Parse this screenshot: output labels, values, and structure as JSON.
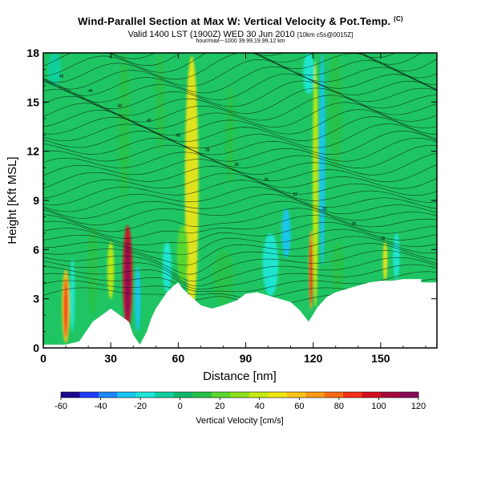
{
  "header": {
    "title": "Wind-Parallel Section at Max W: Vertical Velocity & Pot.Temp.",
    "title_mark": "(C)",
    "valid_line": "Valid 1400 LST (1900Z) WED 30 Jun 2010",
    "run_info": "[10km c5s@0015Z]",
    "sub_line": "hour/max~-1000 39.99,19.99,12 km"
  },
  "chart_data": {
    "type": "heatmap",
    "title": "Wind-Parallel Section at Max W: Vertical Velocity & Pot.Temp.",
    "xlabel": "Distance [nm]",
    "ylabel": "Height [Kft MSL]",
    "xlim": [
      0,
      175
    ],
    "ylim": [
      0,
      18
    ],
    "x_ticks": [
      "0",
      "30",
      "60",
      "90",
      "120",
      "150"
    ],
    "y_ticks": [
      "0",
      "3",
      "6",
      "9",
      "12",
      "15",
      "18"
    ],
    "x_tick_values": [
      0,
      30,
      60,
      90,
      120,
      150
    ],
    "y_tick_values": [
      0,
      3,
      6,
      9,
      12,
      15,
      18
    ],
    "terrain": {
      "unit_x": "nm",
      "unit_y": "Kft MSL",
      "points": [
        [
          0,
          0.2
        ],
        [
          10,
          0.2
        ],
        [
          16,
          0.4
        ],
        [
          22,
          1.6
        ],
        [
          27,
          2.1
        ],
        [
          30,
          2.4
        ],
        [
          34,
          2.0
        ],
        [
          38,
          1.6
        ],
        [
          40,
          0.8
        ],
        [
          43,
          0.2
        ],
        [
          46,
          1.0
        ],
        [
          48,
          1.8
        ],
        [
          50,
          2.4
        ],
        [
          52,
          2.8
        ],
        [
          55,
          3.4
        ],
        [
          58,
          3.8
        ],
        [
          60,
          4.0
        ],
        [
          62,
          3.6
        ],
        [
          66,
          3.1
        ],
        [
          70,
          2.6
        ],
        [
          75,
          2.4
        ],
        [
          80,
          2.6
        ],
        [
          86,
          2.9
        ],
        [
          90,
          3.3
        ],
        [
          95,
          3.4
        ],
        [
          100,
          3.2
        ],
        [
          105,
          3.0
        ],
        [
          110,
          2.8
        ],
        [
          114,
          2.3
        ],
        [
          118,
          1.6
        ],
        [
          122,
          2.5
        ],
        [
          126,
          3.1
        ],
        [
          130,
          3.4
        ],
        [
          135,
          3.6
        ],
        [
          140,
          3.8
        ],
        [
          145,
          4.0
        ],
        [
          150,
          4.1
        ],
        [
          155,
          4.1
        ],
        [
          160,
          4.2
        ],
        [
          165,
          4.2
        ],
        [
          168,
          4.2
        ],
        [
          168,
          4.0
        ],
        [
          175,
          4.0
        ]
      ]
    },
    "colorbar": {
      "label": "Vertical Velocity [cm/s]",
      "ticks": [
        "-60",
        "-40",
        "-20",
        "0",
        "20",
        "40",
        "60",
        "80",
        "100",
        "120"
      ],
      "tick_values": [
        -60,
        -40,
        -20,
        0,
        20,
        40,
        60,
        80,
        100,
        120
      ],
      "colors": [
        "#1a0a8c",
        "#1f3cff",
        "#1e88ff",
        "#18c8f4",
        "#1ee8d8",
        "#0fd0a0",
        "#0fb86b",
        "#26c24a",
        "#5ad82c",
        "#8ee21a",
        "#c6ea12",
        "#f0e614",
        "#ffc41a",
        "#ff9a16",
        "#ff6a14",
        "#f8301a",
        "#d4101e",
        "#a80a3a",
        "#8a0a5a"
      ]
    },
    "features": [
      {
        "x": 10,
        "y_bottom": 0.3,
        "y_top": 4.8,
        "w": 3.4,
        "cm_s": 60
      },
      {
        "x": 13,
        "y_bottom": 1.0,
        "y_top": 5.5,
        "w": 2.0,
        "cm_s": -20
      },
      {
        "x": 22,
        "y_bottom": 2.0,
        "y_top": 7.5,
        "w": 5.0,
        "cm_s": 15
      },
      {
        "x": 30,
        "y_bottom": 3.0,
        "y_top": 6.5,
        "w": 3.0,
        "cm_s": 40
      },
      {
        "x": 37.5,
        "y_bottom": 1.2,
        "y_top": 7.5,
        "w": 4.4,
        "cm_s": 95
      },
      {
        "x": 42,
        "y_bottom": 1.0,
        "y_top": 5.0,
        "w": 2.5,
        "cm_s": -30
      },
      {
        "x": 55,
        "y_bottom": 3.4,
        "y_top": 6.5,
        "w": 4.0,
        "cm_s": -20
      },
      {
        "x": 66,
        "y_bottom": 2.0,
        "y_top": 17.8,
        "w": 6.0,
        "cm_s": 45
      },
      {
        "x": 62,
        "y_bottom": 4.0,
        "y_top": 7.5,
        "w": 5.0,
        "cm_s": 20
      },
      {
        "x": 80,
        "y_bottom": 2.6,
        "y_top": 6.0,
        "w": 9.0,
        "cm_s": 15
      },
      {
        "x": 101,
        "y_bottom": 3.2,
        "y_top": 7.0,
        "w": 7.0,
        "cm_s": -15
      },
      {
        "x": 108,
        "y_bottom": 5.5,
        "y_top": 8.5,
        "w": 4.0,
        "cm_s": -25
      },
      {
        "x": 119,
        "y_bottom": 2.3,
        "y_top": 7.2,
        "w": 2.0,
        "cm_s": 70
      },
      {
        "x": 121,
        "y_bottom": 2.5,
        "y_top": 17.5,
        "w": 2.5,
        "cm_s": 35
      },
      {
        "x": 124,
        "y_bottom": 5.0,
        "y_top": 18.0,
        "w": 2.5,
        "cm_s": -25
      },
      {
        "x": 131,
        "y_bottom": 3.4,
        "y_top": 6.5,
        "w": 5.0,
        "cm_s": 15
      },
      {
        "x": 152,
        "y_bottom": 4.1,
        "y_top": 6.5,
        "w": 2.0,
        "cm_s": 50
      },
      {
        "x": 157,
        "y_bottom": 4.2,
        "y_top": 7.0,
        "w": 3.0,
        "cm_s": -20
      },
      {
        "x": 36,
        "y_bottom": 9.0,
        "y_top": 18.0,
        "w": 5.0,
        "cm_s": 15
      },
      {
        "x": 52,
        "y_bottom": 12.0,
        "y_top": 18.0,
        "w": 4.0,
        "cm_s": 10
      },
      {
        "x": 83,
        "y_bottom": 10.0,
        "y_top": 16.0,
        "w": 4.0,
        "cm_s": 15
      },
      {
        "x": 130,
        "y_bottom": 11.0,
        "y_top": 18.0,
        "w": 6.0,
        "cm_s": 15
      },
      {
        "x": 118,
        "y_bottom": 15.5,
        "y_top": 18.0,
        "w": 5.0,
        "cm_s": -20
      },
      {
        "x": 5,
        "y_bottom": 16.0,
        "y_top": 18.0,
        "w": 6.0,
        "cm_s": -10
      }
    ],
    "theta_labels": [
      "48",
      "46",
      "44",
      "42",
      "40",
      "38",
      "36",
      "34",
      "32",
      "30",
      "28",
      "26"
    ]
  }
}
